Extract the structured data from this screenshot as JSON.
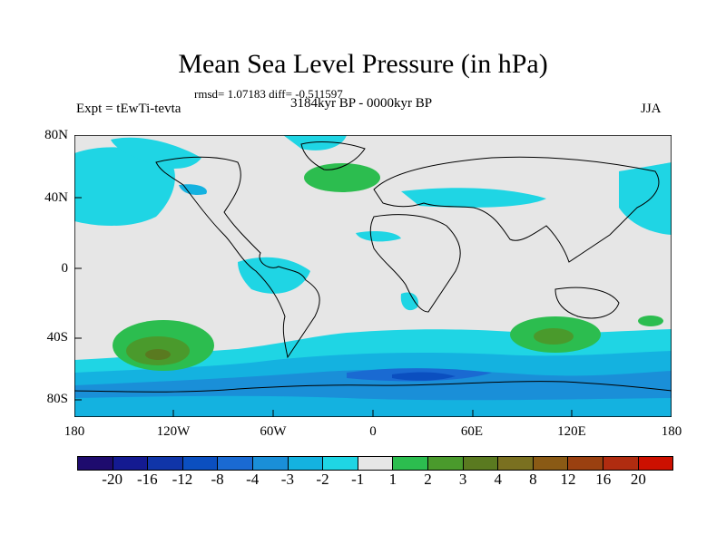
{
  "title": "Mean Sea Level Pressure (in hPa)",
  "stats": "rmsd= 1.07183 diff= -0.511597",
  "period": "3184kyr BP - 0000kyr BP",
  "experiment": "Expt = tEwTi-tevta",
  "season": "JJA",
  "lat_ticks": [
    "80N",
    "40N",
    "0",
    "40S",
    "80S"
  ],
  "lon_ticks": [
    "180",
    "120W",
    "60W",
    "0",
    "60E",
    "120E",
    "180"
  ],
  "legend": {
    "colors": [
      "#1e0b6e",
      "#141a91",
      "#1035a8",
      "#0b4fc0",
      "#1a6ad2",
      "#1a8fd8",
      "#14b2e0",
      "#1fd5e4",
      "#e6e6e6",
      "#2cbd4f",
      "#4a9a2c",
      "#5a7a20",
      "#7a7020",
      "#8a5a15",
      "#9a4010",
      "#b02c10",
      "#cc1000"
    ],
    "labels": [
      "-20",
      "-16",
      "-12",
      "-8",
      "-4",
      "-3",
      "-2",
      "-1",
      "1",
      "2",
      "3",
      "4",
      "8",
      "12",
      "16",
      "20"
    ]
  }
}
